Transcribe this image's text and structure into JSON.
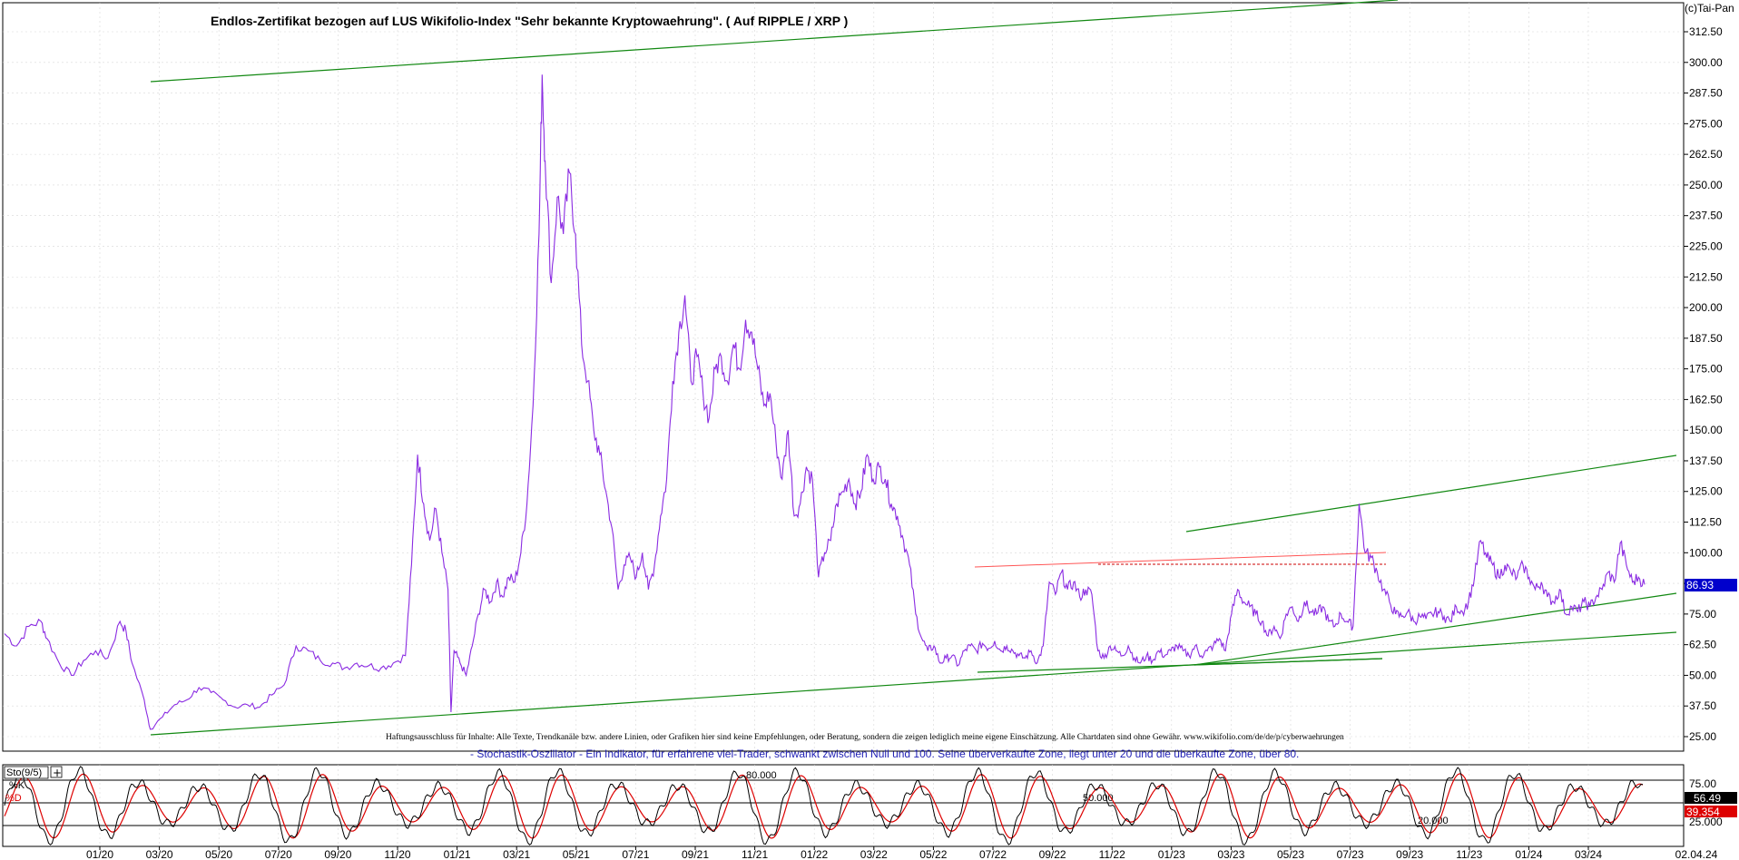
{
  "chart_data": [
    {
      "type": "line",
      "title": "Endlos-Zertifikat bezogen auf LUS Wikifolio-Index \"Sehr bekannte Kryptowaehrung\". ( Auf RIPPLE / XRP )",
      "copyright": "(c)Tai-Pan",
      "y_ticks": [
        "312.50",
        "300.00",
        "287.50",
        "275.00",
        "262.50",
        "250.00",
        "237.50",
        "225.00",
        "212.50",
        "200.00",
        "187.50",
        "175.00",
        "162.50",
        "150.00",
        "137.50",
        "125.00",
        "112.50",
        "100.00",
        "87.50",
        "75.00",
        "62.50",
        "50.00",
        "37.50",
        "25.00"
      ],
      "ylim": [
        22,
        322
      ],
      "last_value": "86.93",
      "series": [
        {
          "color": "#8a2be2",
          "points": [
            [
              0,
              67
            ],
            [
              2,
              62
            ],
            [
              4,
              70
            ],
            [
              6,
              72
            ],
            [
              7,
              65
            ],
            [
              9,
              55
            ],
            [
              11,
              50
            ],
            [
              13,
              56
            ],
            [
              15,
              60
            ],
            [
              17,
              57
            ],
            [
              19,
              72
            ],
            [
              20,
              68
            ],
            [
              21,
              55
            ],
            [
              23,
              40
            ],
            [
              24,
              28
            ],
            [
              26,
              33
            ],
            [
              28,
              38
            ],
            [
              30,
              40
            ],
            [
              32,
              45
            ],
            [
              34,
              43
            ],
            [
              36,
              40
            ],
            [
              38,
              37
            ],
            [
              40,
              38
            ],
            [
              42,
              37
            ],
            [
              44,
              42
            ],
            [
              46,
              46
            ],
            [
              48,
              62
            ],
            [
              50,
              60
            ],
            [
              52,
              56
            ],
            [
              54,
              55
            ],
            [
              56,
              53
            ],
            [
              58,
              55
            ],
            [
              60,
              54
            ],
            [
              62,
              53
            ],
            [
              64,
              55
            ],
            [
              66,
              58
            ],
            [
              67,
              95
            ],
            [
              68,
              140
            ],
            [
              69,
              120
            ],
            [
              70,
              105
            ],
            [
              71,
              118
            ],
            [
              72,
              100
            ],
            [
              73,
              85
            ],
            [
              73.5,
              35
            ],
            [
              74,
              60
            ],
            [
              75,
              55
            ],
            [
              76,
              50
            ],
            [
              77,
              62
            ],
            [
              78,
              75
            ],
            [
              79,
              85
            ],
            [
              80,
              80
            ],
            [
              81,
              88
            ],
            [
              82,
              82
            ],
            [
              83,
              90
            ],
            [
              84,
              88
            ],
            [
              85,
              100
            ],
            [
              86,
              120
            ],
            [
              87,
              160
            ],
            [
              88,
              230
            ],
            [
              88.5,
              295
            ],
            [
              89,
              260
            ],
            [
              90,
              210
            ],
            [
              91,
              245
            ],
            [
              92,
              230
            ],
            [
              93,
              255
            ],
            [
              94,
              230
            ],
            [
              95,
              185
            ],
            [
              96,
              170
            ],
            [
              97,
              150
            ],
            [
              98,
              140
            ],
            [
              99,
              125
            ],
            [
              100,
              110
            ],
            [
              101,
              85
            ],
            [
              102,
              95
            ],
            [
              103,
              98
            ],
            [
              104,
              90
            ],
            [
              105,
              100
            ],
            [
              106,
              85
            ],
            [
              107,
              95
            ],
            [
              108,
              115
            ],
            [
              109,
              130
            ],
            [
              110,
              170
            ],
            [
              111,
              190
            ],
            [
              112,
              205
            ],
            [
              113,
              170
            ],
            [
              114,
              180
            ],
            [
              115,
              165
            ],
            [
              116,
              155
            ],
            [
              117,
              175
            ],
            [
              118,
              180
            ],
            [
              119,
              170
            ],
            [
              120,
              185
            ],
            [
              121,
              175
            ],
            [
              122,
              195
            ],
            [
              123,
              190
            ],
            [
              124,
              175
            ],
            [
              125,
              160
            ],
            [
              126,
              165
            ],
            [
              127,
              145
            ],
            [
              128,
              130
            ],
            [
              129,
              150
            ],
            [
              130,
              115
            ],
            [
              131,
              120
            ],
            [
              132,
              135
            ],
            [
              133,
              130
            ],
            [
              134,
              90
            ],
            [
              135,
              100
            ],
            [
              136,
              105
            ],
            [
              137,
              120
            ],
            [
              138,
              125
            ],
            [
              139,
              130
            ],
            [
              140,
              120
            ],
            [
              141,
              125
            ],
            [
              142,
              140
            ],
            [
              143,
              130
            ],
            [
              144,
              135
            ],
            [
              145,
              130
            ],
            [
              146,
              120
            ],
            [
              147,
              115
            ],
            [
              148,
              105
            ],
            [
              149,
              95
            ],
            [
              150,
              75
            ],
            [
              151,
              65
            ],
            [
              152,
              60
            ],
            [
              153,
              62
            ],
            [
              154,
              55
            ],
            [
              155,
              57
            ],
            [
              156,
              58
            ],
            [
              157,
              54
            ],
            [
              158,
              60
            ],
            [
              159,
              62
            ],
            [
              160,
              60
            ],
            [
              161,
              63
            ],
            [
              162,
              61
            ],
            [
              163,
              64
            ],
            [
              164,
              60
            ],
            [
              165,
              62
            ],
            [
              166,
              60
            ],
            [
              167,
              58
            ],
            [
              168,
              57
            ],
            [
              169,
              60
            ],
            [
              170,
              55
            ],
            [
              171,
              62
            ],
            [
              172,
              88
            ],
            [
              173,
              83
            ],
            [
              174,
              92
            ],
            [
              175,
              85
            ],
            [
              176,
              88
            ],
            [
              177,
              82
            ],
            [
              178,
              85
            ],
            [
              179,
              83
            ],
            [
              180,
              60
            ],
            [
              181,
              57
            ],
            [
              182,
              62
            ],
            [
              183,
              60
            ],
            [
              184,
              58
            ],
            [
              185,
              62
            ],
            [
              186,
              57
            ],
            [
              187,
              55
            ],
            [
              188,
              58
            ],
            [
              189,
              56
            ],
            [
              190,
              60
            ],
            [
              191,
              58
            ],
            [
              192,
              60
            ],
            [
              193,
              62
            ],
            [
              194,
              60
            ],
            [
              195,
              58
            ],
            [
              196,
              62
            ],
            [
              197,
              58
            ],
            [
              198,
              60
            ],
            [
              199,
              62
            ],
            [
              200,
              65
            ],
            [
              201,
              60
            ],
            [
              202,
              75
            ],
            [
              203,
              85
            ],
            [
              204,
              80
            ],
            [
              205,
              78
            ],
            [
              206,
              75
            ],
            [
              207,
              72
            ],
            [
              208,
              66
            ],
            [
              209,
              70
            ],
            [
              210,
              65
            ],
            [
              211,
              75
            ],
            [
              212,
              78
            ],
            [
              213,
              72
            ],
            [
              214,
              80
            ],
            [
              215,
              76
            ],
            [
              216,
              75
            ],
            [
              217,
              78
            ],
            [
              218,
              72
            ],
            [
              219,
              70
            ],
            [
              220,
              75
            ],
            [
              221,
              72
            ],
            [
              222,
              70
            ],
            [
              223,
              120
            ],
            [
              224,
              100
            ],
            [
              225,
              98
            ],
            [
              226,
              92
            ],
            [
              227,
              85
            ],
            [
              228,
              80
            ],
            [
              229,
              75
            ],
            [
              230,
              74
            ],
            [
              231,
              76
            ],
            [
              232,
              72
            ],
            [
              233,
              74
            ],
            [
              234,
              73
            ],
            [
              235,
              75
            ],
            [
              236,
              76
            ],
            [
              237,
              74
            ],
            [
              238,
              72
            ],
            [
              239,
              78
            ],
            [
              240,
              76
            ],
            [
              241,
              80
            ],
            [
              242,
              90
            ],
            [
              243,
              105
            ],
            [
              244,
              98
            ],
            [
              245,
              95
            ],
            [
              246,
              90
            ],
            [
              247,
              95
            ],
            [
              248,
              92
            ],
            [
              249,
              90
            ],
            [
              250,
              95
            ],
            [
              251,
              90
            ],
            [
              252,
              85
            ],
            [
              253,
              88
            ],
            [
              254,
              82
            ],
            [
              255,
              80
            ],
            [
              256,
              85
            ],
            [
              257,
              75
            ],
            [
              258,
              78
            ],
            [
              259,
              76
            ],
            [
              260,
              80
            ],
            [
              261,
              78
            ],
            [
              262,
              82
            ],
            [
              263,
              85
            ],
            [
              264,
              92
            ],
            [
              265,
              88
            ],
            [
              266,
              104
            ],
            [
              267,
              95
            ],
            [
              268,
              88
            ],
            [
              269,
              90
            ],
            [
              270,
              87
            ]
          ]
        }
      ]
    },
    {
      "type": "line",
      "title": "Sto(9/5)",
      "ylim": [
        0,
        100
      ],
      "y_ticks": [
        "75.00",
        "25.000"
      ],
      "levels": [
        {
          "label": "80.000",
          "value": 80
        },
        {
          "label": "50.000",
          "value": 50
        },
        {
          "label": "20.000",
          "value": 20
        }
      ],
      "series": [
        {
          "name": "%K",
          "color": "#000000",
          "last_value": "56.49"
        },
        {
          "name": "%D",
          "color": "#dd0000",
          "last_value": "39.354"
        }
      ]
    }
  ],
  "x_ticks": [
    "01/20",
    "03/20",
    "05/20",
    "07/20",
    "09/20",
    "11/20",
    "01/21",
    "03/21",
    "05/21",
    "07/21",
    "09/21",
    "11/21",
    "01/22",
    "03/22",
    "05/22",
    "07/22",
    "09/22",
    "11/22",
    "01/23",
    "03/23",
    "05/23",
    "07/23",
    "09/23",
    "11/23",
    "01/24",
    "03/24",
    "02.04.24"
  ],
  "disclaimer": "Haftungsausschluss für Inhalte: Alle Texte, Trendkanäle bzw. andere Linien, oder Grafiken hier sind keine Empfehlungen, oder Beratung, sondern die zeigen lediglich meine eigene Einschätzung. Alle Chartdaten sind ohne Gewähr. www.wikifolio.com/de/de/p/cyberwaehrungen",
  "stoch_description": "- Stochastik-Oszillator - Ein Indikator, für erfahrene viel-Trader, schwankt zwischen Null und 100. Seine überverkaufte Zone, liegt unter 20 und die überkaufte Zone, über 80.",
  "colors": {
    "price": "#8a2be2",
    "trend": "#118811",
    "resistance": "#ff5555",
    "stoch_k": "#000000",
    "stoch_d": "#dd0000",
    "marker_bg": "#0000cc"
  }
}
